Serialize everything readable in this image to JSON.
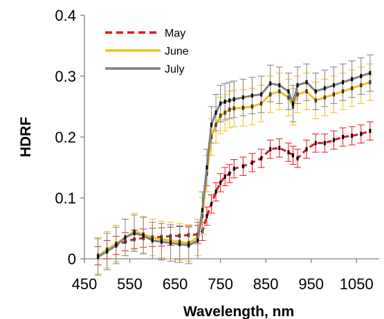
{
  "chart_data": {
    "type": "line",
    "xlabel": "Wavelength, nm",
    "ylabel": "HDRF",
    "xlim": [
      450,
      1100
    ],
    "ylim": [
      0,
      0.4
    ],
    "xticks": [
      "450",
      "550",
      "650",
      "750",
      "850",
      "950",
      "1050"
    ],
    "yticks": [
      "0",
      "0.1",
      "0.2",
      "0.3",
      "0.4"
    ],
    "grid": false,
    "legend_position": "top-left",
    "x": [
      480,
      500,
      520,
      540,
      560,
      580,
      600,
      620,
      640,
      660,
      680,
      700,
      710,
      720,
      730,
      740,
      750,
      760,
      770,
      780,
      800,
      820,
      840,
      860,
      880,
      900,
      910,
      920,
      940,
      960,
      980,
      1000,
      1020,
      1040,
      1060,
      1080
    ],
    "series": [
      {
        "name": "May",
        "color": "#e8151c",
        "dash": "dashed",
        "values": [
          0.005,
          0.015,
          0.022,
          0.028,
          0.032,
          0.034,
          0.035,
          0.036,
          0.037,
          0.038,
          0.039,
          0.04,
          0.045,
          0.07,
          0.09,
          0.11,
          0.125,
          0.135,
          0.14,
          0.148,
          0.152,
          0.158,
          0.165,
          0.18,
          0.182,
          0.175,
          0.17,
          0.165,
          0.18,
          0.19,
          0.19,
          0.195,
          0.2,
          0.202,
          0.205,
          0.21
        ],
        "error": 0.015
      },
      {
        "name": "June",
        "color": "#f5bf14",
        "dash": "solid",
        "values": [
          0.005,
          0.015,
          0.025,
          0.035,
          0.045,
          0.04,
          0.035,
          0.032,
          0.03,
          0.028,
          0.026,
          0.035,
          0.07,
          0.14,
          0.2,
          0.22,
          0.235,
          0.24,
          0.245,
          0.247,
          0.248,
          0.25,
          0.255,
          0.27,
          0.275,
          0.265,
          0.25,
          0.27,
          0.275,
          0.26,
          0.265,
          0.27,
          0.275,
          0.28,
          0.285,
          0.29
        ],
        "error": 0.03
      },
      {
        "name": "July",
        "color": "#808080",
        "dash": "solid",
        "values": [
          0.003,
          0.012,
          0.022,
          0.035,
          0.042,
          0.038,
          0.03,
          0.028,
          0.026,
          0.024,
          0.022,
          0.03,
          0.08,
          0.15,
          0.22,
          0.24,
          0.255,
          0.258,
          0.26,
          0.262,
          0.265,
          0.268,
          0.27,
          0.288,
          0.285,
          0.275,
          0.255,
          0.285,
          0.29,
          0.275,
          0.28,
          0.285,
          0.29,
          0.295,
          0.3,
          0.305
        ],
        "error": 0.03
      }
    ]
  }
}
